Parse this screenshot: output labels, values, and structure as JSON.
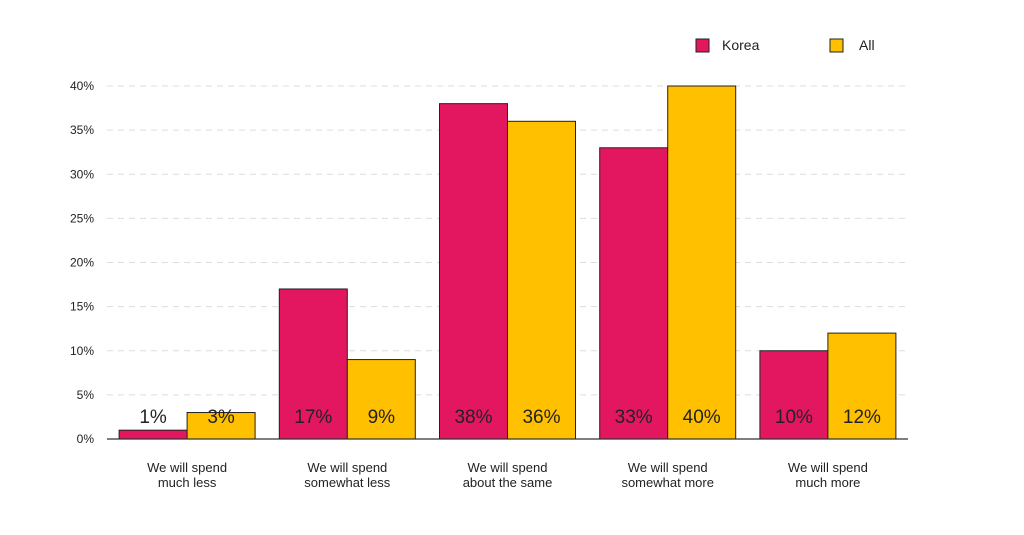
{
  "chart_data": {
    "type": "bar",
    "categories": [
      [
        "We will spend",
        "much less"
      ],
      [
        "We will spend",
        "somewhat less"
      ],
      [
        "We will spend",
        "about the same"
      ],
      [
        "We will spend",
        "somewhat more"
      ],
      [
        "We will spend",
        "much more"
      ]
    ],
    "series": [
      {
        "name": "Korea",
        "color": "#E3175F",
        "values": [
          1,
          17,
          38,
          33,
          10
        ],
        "labels": [
          "1%",
          "17%",
          "38%",
          "33%",
          "10%"
        ]
      },
      {
        "name": "All",
        "color": "#FFC000",
        "values": [
          3,
          9,
          36,
          40,
          12
        ],
        "labels": [
          "3%",
          "9%",
          "36%",
          "40%",
          "12%"
        ]
      }
    ],
    "y_ticks": [
      0,
      5,
      10,
      15,
      20,
      25,
      30,
      35,
      40
    ],
    "y_tick_labels": [
      "0%",
      "5%",
      "10%",
      "15%",
      "20%",
      "25%",
      "30%",
      "35%",
      "40%"
    ],
    "ylim": [
      0,
      40
    ],
    "grid": true,
    "legend_position": "top-right"
  }
}
